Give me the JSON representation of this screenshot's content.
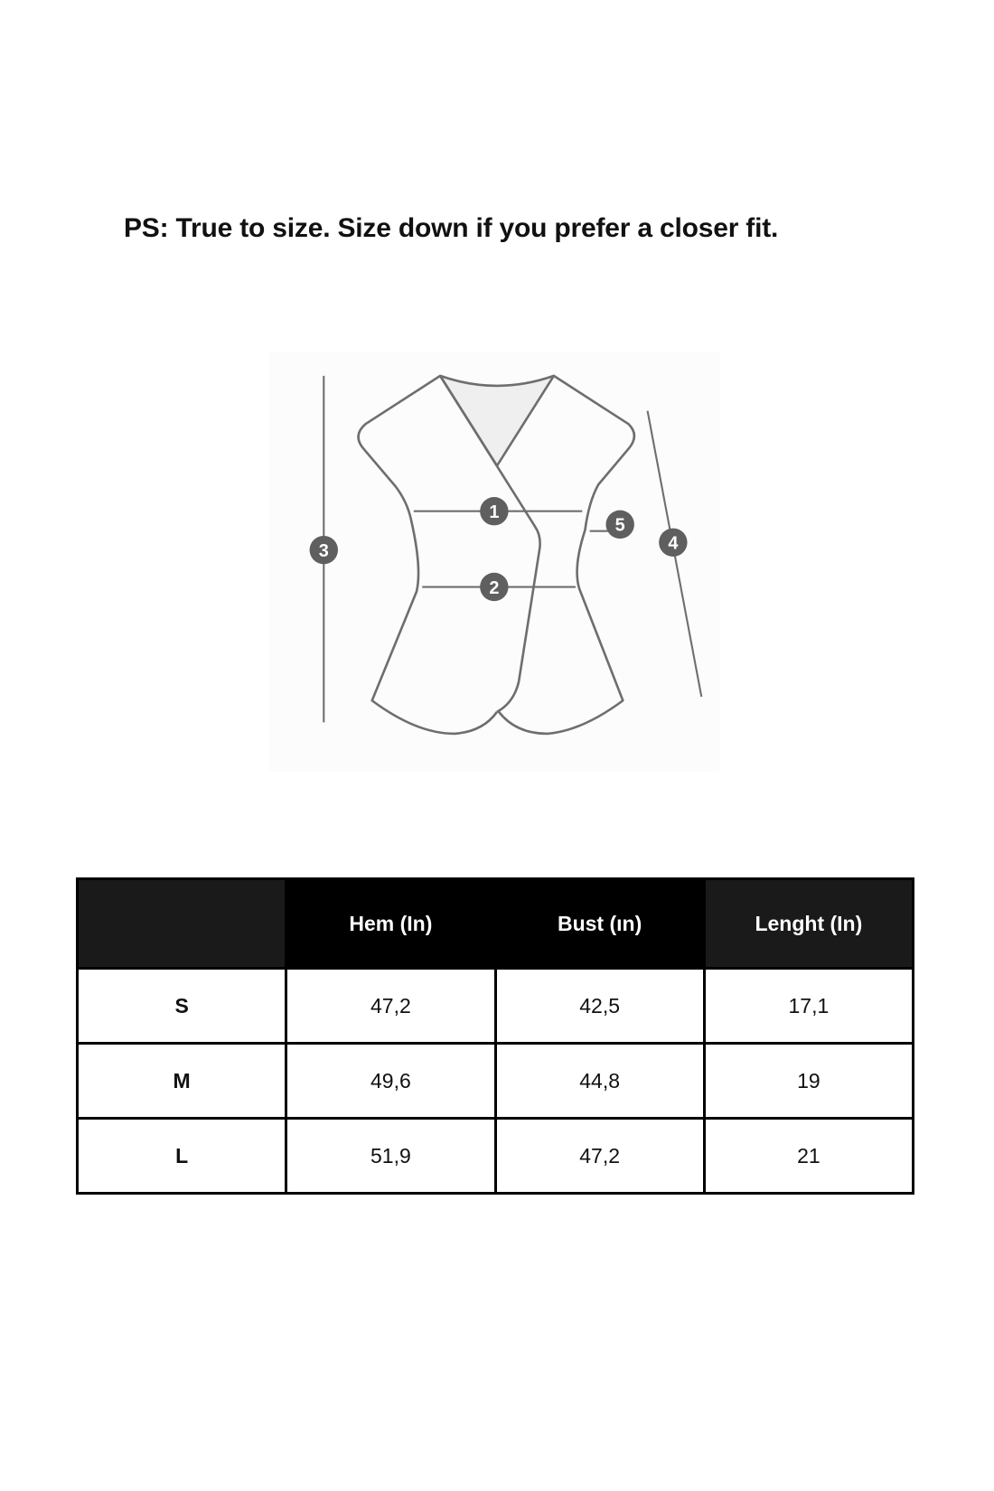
{
  "note": "PS: True to size. Size down if you prefer a closer fit.",
  "diagram": {
    "markers": [
      "1",
      "2",
      "3",
      "4",
      "5"
    ],
    "colors": {
      "line": "#6e6e6e",
      "marker": "#5f5f5f",
      "neck_fill": "#efefef"
    }
  },
  "table": {
    "headers": [
      "",
      "Hem (In)",
      "Bust (ın)",
      "Lenght (In)"
    ],
    "rows": [
      [
        "S",
        "47,2",
        "42,5",
        "17,1"
      ],
      [
        "M",
        "49,6",
        "44,8",
        "19"
      ],
      [
        "L",
        "51,9",
        "47,2",
        "21"
      ]
    ]
  }
}
